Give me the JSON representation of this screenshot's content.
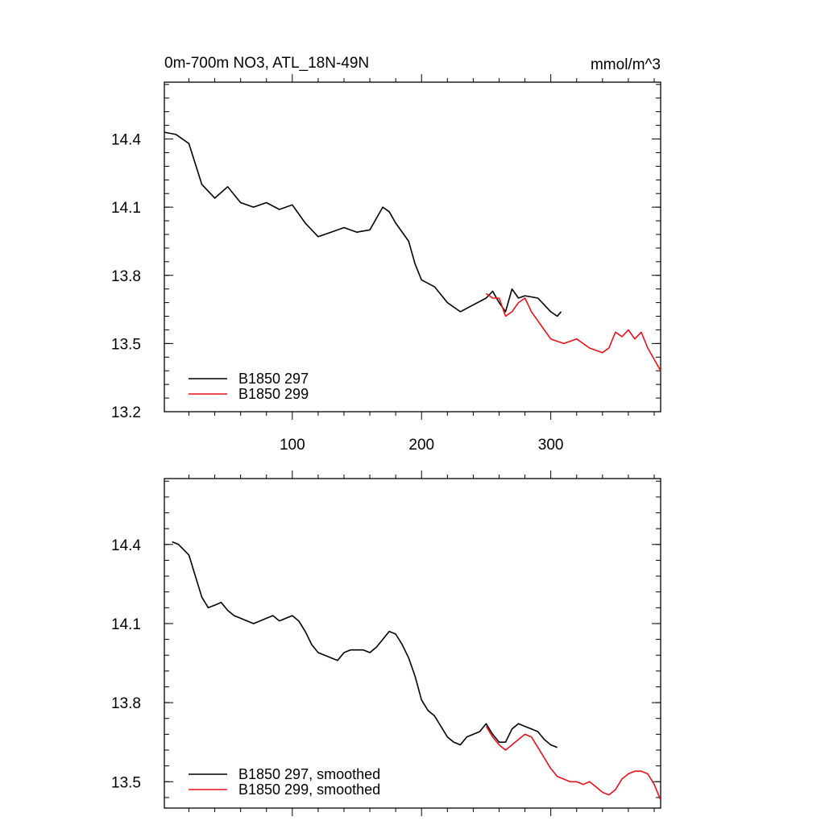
{
  "title_left": "0m-700m NO3, ATL_18N-49N",
  "title_right": "mmol/m^3",
  "colors": {
    "series_1": "#000000",
    "series_2": "#e8101a"
  },
  "chart_data": [
    {
      "type": "line",
      "xlim": [
        1,
        385
      ],
      "ylim": [
        13.2,
        14.65
      ],
      "x_ticks": [
        100,
        200,
        300
      ],
      "y_ticks": [
        13.2,
        13.5,
        13.8,
        14.1,
        14.4
      ],
      "legend_position": "bottom-left",
      "series": [
        {
          "name": "B1850 297",
          "color": "#000000",
          "x": [
            1,
            10,
            20,
            30,
            40,
            50,
            60,
            70,
            80,
            90,
            100,
            110,
            120,
            130,
            140,
            150,
            160,
            170,
            175,
            180,
            190,
            195,
            200,
            210,
            220,
            230,
            240,
            250,
            255,
            260,
            265,
            270,
            275,
            280,
            290,
            300,
            305,
            308
          ],
          "y": [
            14.43,
            14.42,
            14.38,
            14.2,
            14.14,
            14.19,
            14.12,
            14.1,
            14.12,
            14.09,
            14.11,
            14.03,
            13.97,
            13.99,
            14.01,
            13.99,
            14.0,
            14.1,
            14.08,
            14.03,
            13.95,
            13.85,
            13.78,
            13.75,
            13.68,
            13.64,
            13.67,
            13.7,
            13.73,
            13.68,
            13.64,
            13.74,
            13.7,
            13.71,
            13.7,
            13.64,
            13.62,
            13.64
          ]
        },
        {
          "name": "B1850 299",
          "color": "#e8101a",
          "x": [
            250,
            255,
            260,
            265,
            270,
            275,
            280,
            285,
            290,
            295,
            300,
            310,
            320,
            330,
            340,
            345,
            350,
            355,
            360,
            365,
            370,
            375,
            380,
            385
          ],
          "y": [
            13.72,
            13.7,
            13.7,
            13.62,
            13.64,
            13.68,
            13.7,
            13.64,
            13.6,
            13.56,
            13.52,
            13.5,
            13.52,
            13.48,
            13.46,
            13.48,
            13.55,
            13.53,
            13.56,
            13.52,
            13.55,
            13.48,
            13.43,
            13.38
          ]
        }
      ]
    },
    {
      "type": "line",
      "xlim": [
        1,
        385
      ],
      "ylim": [
        13.4,
        14.65
      ],
      "x_ticks": [
        100,
        200,
        300
      ],
      "y_ticks": [
        13.5,
        13.8,
        14.1,
        14.4
      ],
      "legend_position": "bottom-left",
      "series": [
        {
          "name": "B1850 297, smoothed",
          "color": "#000000",
          "x": [
            7,
            12,
            20,
            25,
            30,
            35,
            40,
            45,
            50,
            55,
            60,
            65,
            70,
            75,
            80,
            85,
            90,
            95,
            100,
            105,
            110,
            115,
            120,
            125,
            130,
            135,
            140,
            145,
            150,
            155,
            160,
            165,
            170,
            175,
            180,
            185,
            190,
            195,
            200,
            205,
            210,
            215,
            220,
            225,
            230,
            235,
            240,
            245,
            250,
            255,
            260,
            265,
            270,
            275,
            280,
            285,
            290,
            295,
            300,
            305
          ],
          "y": [
            14.41,
            14.4,
            14.36,
            14.28,
            14.2,
            14.16,
            14.17,
            14.18,
            14.15,
            14.13,
            14.12,
            14.11,
            14.1,
            14.11,
            14.12,
            14.13,
            14.11,
            14.12,
            14.13,
            14.11,
            14.07,
            14.02,
            13.99,
            13.98,
            13.97,
            13.96,
            13.99,
            14.0,
            14.0,
            14.0,
            13.99,
            14.01,
            14.04,
            14.07,
            14.06,
            14.02,
            13.97,
            13.9,
            13.81,
            13.77,
            13.75,
            13.71,
            13.67,
            13.65,
            13.64,
            13.67,
            13.68,
            13.69,
            13.72,
            13.68,
            13.65,
            13.65,
            13.7,
            13.72,
            13.71,
            13.7,
            13.69,
            13.66,
            13.64,
            13.63
          ]
        },
        {
          "name": "B1850 299, smoothed",
          "color": "#e8101a",
          "x": [
            250,
            255,
            260,
            265,
            270,
            275,
            280,
            285,
            290,
            295,
            300,
            305,
            310,
            315,
            320,
            325,
            330,
            335,
            340,
            345,
            350,
            355,
            360,
            365,
            370,
            375,
            380,
            385
          ],
          "y": [
            13.71,
            13.67,
            13.64,
            13.62,
            13.64,
            13.66,
            13.68,
            13.67,
            13.63,
            13.59,
            13.55,
            13.52,
            13.51,
            13.5,
            13.5,
            13.49,
            13.5,
            13.48,
            13.46,
            13.45,
            13.47,
            13.51,
            13.53,
            13.54,
            13.54,
            13.53,
            13.49,
            13.43
          ]
        }
      ]
    }
  ]
}
